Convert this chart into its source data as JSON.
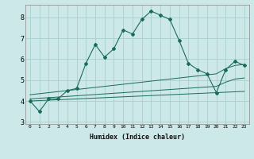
{
  "xlabel": "Humidex (Indice chaleur)",
  "bg_color": "#cce8e8",
  "line_color": "#1a6b5a",
  "grid_color": "#aacece",
  "x_ticks": [
    0,
    1,
    2,
    3,
    4,
    5,
    6,
    7,
    8,
    9,
    10,
    11,
    12,
    13,
    14,
    15,
    16,
    17,
    18,
    19,
    20,
    21,
    22,
    23
  ],
  "y_ticks": [
    3,
    4,
    5,
    6,
    7,
    8
  ],
  "ylim": [
    2.9,
    8.6
  ],
  "xlim": [
    -0.5,
    23.5
  ],
  "main_line": {
    "x": [
      0,
      1,
      2,
      3,
      4,
      5,
      6,
      7,
      8,
      9,
      10,
      11,
      12,
      13,
      14,
      15,
      16,
      17,
      18,
      19,
      20,
      21,
      22,
      23
    ],
    "y": [
      4.0,
      3.5,
      4.1,
      4.1,
      4.5,
      4.6,
      5.8,
      6.7,
      6.1,
      6.5,
      7.4,
      7.2,
      7.9,
      8.3,
      8.1,
      7.9,
      6.9,
      5.8,
      5.5,
      5.3,
      4.4,
      5.5,
      5.9,
      5.7
    ]
  },
  "band_upper": {
    "x": [
      0,
      1,
      2,
      3,
      4,
      5,
      6,
      7,
      8,
      9,
      10,
      11,
      12,
      13,
      14,
      15,
      16,
      17,
      18,
      19,
      20,
      21,
      22,
      23
    ],
    "y": [
      4.3,
      4.35,
      4.4,
      4.45,
      4.5,
      4.55,
      4.6,
      4.65,
      4.7,
      4.75,
      4.8,
      4.85,
      4.9,
      4.95,
      5.0,
      5.05,
      5.1,
      5.15,
      5.2,
      5.25,
      5.3,
      5.55,
      5.7,
      5.75
    ]
  },
  "band_mid": {
    "x": [
      0,
      1,
      2,
      3,
      4,
      5,
      6,
      7,
      8,
      9,
      10,
      11,
      12,
      13,
      14,
      15,
      16,
      17,
      18,
      19,
      20,
      21,
      22,
      23
    ],
    "y": [
      4.1,
      4.13,
      4.16,
      4.19,
      4.22,
      4.25,
      4.28,
      4.31,
      4.34,
      4.37,
      4.4,
      4.43,
      4.46,
      4.49,
      4.52,
      4.55,
      4.58,
      4.61,
      4.64,
      4.67,
      4.7,
      4.9,
      5.05,
      5.1
    ]
  },
  "band_lower": {
    "x": [
      0,
      1,
      2,
      3,
      4,
      5,
      6,
      7,
      8,
      9,
      10,
      11,
      12,
      13,
      14,
      15,
      16,
      17,
      18,
      19,
      20,
      21,
      22,
      23
    ],
    "y": [
      4.0,
      4.02,
      4.04,
      4.06,
      4.08,
      4.1,
      4.12,
      4.14,
      4.16,
      4.18,
      4.2,
      4.22,
      4.24,
      4.26,
      4.28,
      4.3,
      4.32,
      4.34,
      4.36,
      4.38,
      4.4,
      4.42,
      4.44,
      4.46
    ]
  }
}
